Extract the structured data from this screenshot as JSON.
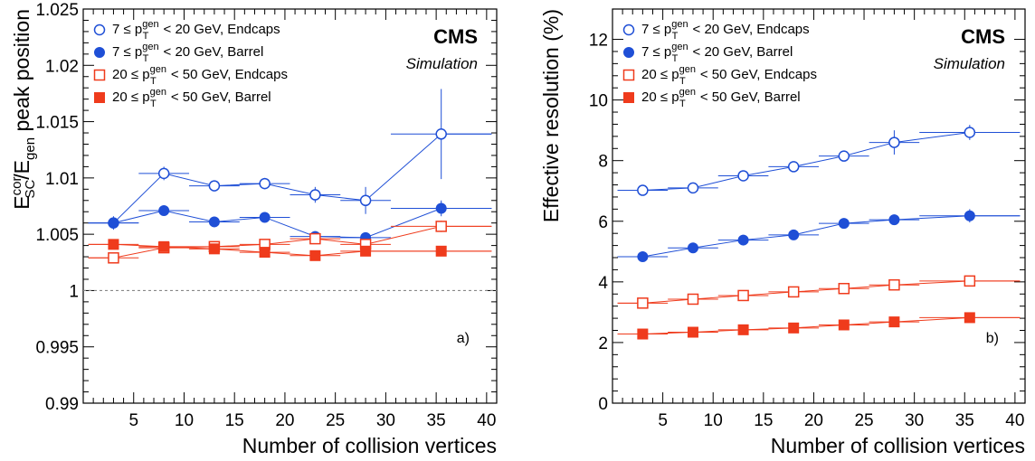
{
  "chart_data": [
    {
      "type": "scatter",
      "panel_label": "a)",
      "experiment": "CMS",
      "subtitle": "Simulation",
      "xlabel": "Number of collision vertices",
      "ylabel": "E_SC^cor / E_gen peak position",
      "ylabel_parts": {
        "main": "E",
        "sup": "cor",
        "sub": "SC",
        "mid": "/E",
        "sub2": "gen",
        "tail": " peak position"
      },
      "xlim": [
        0,
        41
      ],
      "ylim": [
        0.99,
        1.025
      ],
      "x_ticks": [
        5,
        10,
        15,
        20,
        25,
        30,
        35,
        40
      ],
      "x_tick_labels": [
        "5",
        "10",
        "15",
        "20",
        "25",
        "30",
        "35",
        "40"
      ],
      "y_ticks": [
        0.99,
        0.995,
        1,
        1.005,
        1.01,
        1.015,
        1.02,
        1.025
      ],
      "y_tick_labels": [
        "0.99",
        "0.995",
        "1",
        "1.005",
        "1.01",
        "1.015",
        "1.02",
        "1.025"
      ],
      "reference_line": 1.0,
      "legend_position": "top-left",
      "series": [
        {
          "name": "7 ≤ p_T^gen < 20 GeV, Endcaps",
          "color": "#1f4fd6",
          "marker": "open-circle",
          "x": [
            3,
            8,
            13,
            18,
            23,
            28,
            35.5
          ],
          "xerr": [
            2.5,
            2.5,
            2.5,
            2.5,
            2.5,
            2.5,
            5
          ],
          "x_lo_edge": 0.5,
          "y": [
            1.006,
            1.0104,
            1.0093,
            1.0095,
            1.0085,
            1.008,
            1.0139
          ],
          "yerr": [
            0.0006,
            0.0006,
            0.0004,
            0.0005,
            0.0007,
            0.0012,
            0.004
          ]
        },
        {
          "name": "7 ≤ p_T^gen < 20 GeV, Barrel",
          "color": "#1f4fd6",
          "marker": "filled-circle",
          "x": [
            3,
            8,
            13,
            18,
            23,
            28,
            35.5
          ],
          "xerr": [
            2.5,
            2.5,
            2.5,
            2.5,
            2.5,
            2.5,
            5
          ],
          "x_lo_edge": 0.5,
          "y": [
            1.006,
            1.0071,
            1.0061,
            1.0065,
            1.0048,
            1.0047,
            1.0073
          ],
          "yerr": [
            0.0003,
            0.0002,
            0.0002,
            0.0002,
            0.0002,
            0.0003,
            0.0007
          ]
        },
        {
          "name": "20 ≤ p_T^gen < 50 GeV, Endcaps",
          "color": "#ef3b1c",
          "marker": "open-square",
          "x": [
            3,
            8,
            13,
            18,
            23,
            28,
            35.5
          ],
          "xerr": [
            2.5,
            2.5,
            2.5,
            2.5,
            2.5,
            2.5,
            5
          ],
          "x_lo_edge": 0.5,
          "y": [
            1.0029,
            1.0038,
            1.0039,
            1.0041,
            1.0046,
            1.0041,
            1.0057
          ],
          "yerr": [
            0.0002,
            0.0002,
            0.0002,
            0.0002,
            0.0002,
            0.0003,
            0.0005
          ]
        },
        {
          "name": "20 ≤ p_T^gen < 50 GeV, Barrel",
          "color": "#ef3b1c",
          "marker": "filled-square",
          "x": [
            3,
            8,
            13,
            18,
            23,
            28,
            35.5
          ],
          "xerr": [
            2.5,
            2.5,
            2.5,
            2.5,
            2.5,
            2.5,
            5
          ],
          "x_lo_edge": 0.5,
          "y": [
            1.0041,
            1.0039,
            1.0037,
            1.0034,
            1.0031,
            1.0035,
            1.0035
          ],
          "yerr": [
            0.0001,
            0.0001,
            0.0001,
            0.0001,
            0.0001,
            0.0001,
            0.0001
          ]
        }
      ]
    },
    {
      "type": "scatter",
      "panel_label": "b)",
      "experiment": "CMS",
      "subtitle": "Simulation",
      "xlabel": "Number of collision vertices",
      "ylabel": "Effective resolution (%)",
      "xlim": [
        0,
        41
      ],
      "ylim": [
        0,
        13
      ],
      "x_ticks": [
        5,
        10,
        15,
        20,
        25,
        30,
        35,
        40
      ],
      "x_tick_labels": [
        "5",
        "10",
        "15",
        "20",
        "25",
        "30",
        "35",
        "40"
      ],
      "y_ticks": [
        0,
        2,
        4,
        6,
        8,
        10,
        12
      ],
      "y_tick_labels": [
        "0",
        "2",
        "4",
        "6",
        "8",
        "10",
        "12"
      ],
      "legend_position": "top-left",
      "series": [
        {
          "name": "7 ≤ p_T^gen < 20 GeV, Endcaps",
          "color": "#1f4fd6",
          "marker": "open-circle",
          "x": [
            3,
            8,
            13,
            18,
            23,
            28,
            35.5
          ],
          "xerr": [
            2.5,
            2.5,
            2.5,
            2.5,
            2.5,
            2.5,
            5
          ],
          "x_lo_edge": 0.5,
          "y": [
            7.02,
            7.1,
            7.5,
            7.8,
            8.15,
            8.6,
            8.93
          ],
          "yerr": [
            0.1,
            0.1,
            0.1,
            0.1,
            0.1,
            0.4,
            0.25
          ]
        },
        {
          "name": "7 ≤ p_T^gen < 20 GeV, Barrel",
          "color": "#1f4fd6",
          "marker": "filled-circle",
          "x": [
            3,
            8,
            13,
            18,
            23,
            28,
            35.5
          ],
          "xerr": [
            2.5,
            2.5,
            2.5,
            2.5,
            2.5,
            2.5,
            5
          ],
          "x_lo_edge": 0.5,
          "y": [
            4.83,
            5.12,
            5.38,
            5.55,
            5.93,
            6.05,
            6.18
          ],
          "yerr": [
            0.05,
            0.05,
            0.05,
            0.05,
            0.05,
            0.05,
            0.22
          ]
        },
        {
          "name": "20 ≤ p_T^gen < 50 GeV, Endcaps",
          "color": "#ef3b1c",
          "marker": "open-square",
          "x": [
            3,
            8,
            13,
            18,
            23,
            28,
            35.5
          ],
          "xerr": [
            2.5,
            2.5,
            2.5,
            2.5,
            2.5,
            2.5,
            5
          ],
          "x_lo_edge": 0.5,
          "y": [
            3.3,
            3.43,
            3.55,
            3.67,
            3.78,
            3.9,
            4.03
          ],
          "yerr": [
            0.05,
            0.05,
            0.05,
            0.05,
            0.05,
            0.05,
            0.1
          ]
        },
        {
          "name": "20 ≤ p_T^gen < 50 GeV, Barrel",
          "color": "#ef3b1c",
          "marker": "filled-square",
          "x": [
            3,
            8,
            13,
            18,
            23,
            28,
            35.5
          ],
          "xerr": [
            2.5,
            2.5,
            2.5,
            2.5,
            2.5,
            2.5,
            5
          ],
          "x_lo_edge": 0.5,
          "y": [
            2.28,
            2.34,
            2.42,
            2.48,
            2.58,
            2.68,
            2.82
          ],
          "yerr": [
            0.04,
            0.04,
            0.04,
            0.04,
            0.04,
            0.04,
            0.06
          ]
        }
      ]
    }
  ]
}
